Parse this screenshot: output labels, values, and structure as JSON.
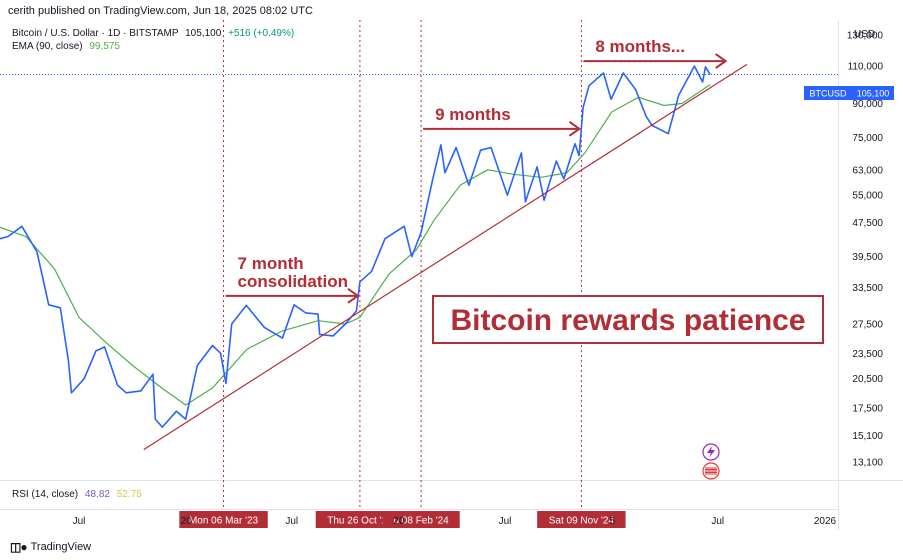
{
  "header": {
    "text": "cerith published on TradingView.com, Jun 18, 2025 08:02 UTC"
  },
  "legend": {
    "symbol": "Bitcoin / U.S. Dollar · 1D · BITSTAMP",
    "price": "105,100",
    "change": "+516 (+0.49%)",
    "ema_label": "EMA (90, close)",
    "ema_value": "99,575"
  },
  "rsi": {
    "label": "RSI (14, close)",
    "value1": "48.82",
    "value2": "52.75"
  },
  "currency": "USD",
  "ticker_tag": {
    "symbol": "BTCUSD",
    "price": "105,100"
  },
  "footer": {
    "brand": "TradingView"
  },
  "colors": {
    "price": "#2962ff",
    "ema": "#4caf50",
    "annotation": "#b22d35",
    "axis_text": "#131722"
  },
  "chart_data": {
    "type": "line",
    "scale": "log",
    "ylim": [
      13100,
      130000
    ],
    "y_ticks": [
      {
        "value": 130000,
        "label": "130,000"
      },
      {
        "value": 110000,
        "label": "110,000"
      },
      {
        "value": 90000,
        "label": "90,000"
      },
      {
        "value": 75000,
        "label": "75,000"
      },
      {
        "value": 63000,
        "label": "63,000"
      },
      {
        "value": 55000,
        "label": "55,000"
      },
      {
        "value": 47500,
        "label": "47,500"
      },
      {
        "value": 39500,
        "label": "39,500"
      },
      {
        "value": 33500,
        "label": "33,500"
      },
      {
        "value": 27500,
        "label": "27,500"
      },
      {
        "value": 23500,
        "label": "23,500"
      },
      {
        "value": 20500,
        "label": "20,500"
      },
      {
        "value": 17500,
        "label": "17,500"
      },
      {
        "value": 15100,
        "label": "15,100"
      },
      {
        "value": 13100,
        "label": "13,100"
      }
    ],
    "x_ticks": [
      {
        "date": "2022-07-01",
        "label": "Jul"
      },
      {
        "date": "2023-01-01",
        "label": "20"
      },
      {
        "date": "2023-07-01",
        "label": "Jul"
      },
      {
        "date": "2024-01-01",
        "label": "20"
      },
      {
        "date": "2024-07-01",
        "label": "Jul"
      },
      {
        "date": "2025-01-01",
        "label": "5"
      },
      {
        "date": "2025-07-01",
        "label": "Jul"
      },
      {
        "date": "2026-01-01",
        "label": "2026"
      }
    ],
    "date_markers": [
      {
        "date": "2023-03-06",
        "label": "Mon 06 Mar '23"
      },
      {
        "date": "2023-10-26",
        "label": "Thu 26 Oct '23"
      },
      {
        "date": "2024-02-08",
        "label": "u 08 Feb '24"
      },
      {
        "date": "2024-11-09",
        "label": "Sat 09 Nov '24"
      }
    ],
    "series": [
      {
        "role": "price",
        "points": [
          [
            "2022-02-01",
            43000
          ],
          [
            "2022-03-01",
            44000
          ],
          [
            "2022-03-25",
            46500
          ],
          [
            "2022-04-20",
            40500
          ],
          [
            "2022-05-10",
            30500
          ],
          [
            "2022-05-30",
            30000
          ],
          [
            "2022-06-13",
            22500
          ],
          [
            "2022-06-18",
            19000
          ],
          [
            "2022-07-10",
            20500
          ],
          [
            "2022-07-30",
            23800
          ],
          [
            "2022-08-14",
            24300
          ],
          [
            "2022-09-05",
            19800
          ],
          [
            "2022-09-20",
            19000
          ],
          [
            "2022-10-15",
            19200
          ],
          [
            "2022-11-05",
            21000
          ],
          [
            "2022-11-09",
            16500
          ],
          [
            "2022-11-21",
            15800
          ],
          [
            "2022-12-15",
            17200
          ],
          [
            "2022-12-31",
            16500
          ],
          [
            "2023-01-20",
            22000
          ],
          [
            "2023-02-15",
            24500
          ],
          [
            "2023-03-01",
            23500
          ],
          [
            "2023-03-10",
            20000
          ],
          [
            "2023-03-20",
            27500
          ],
          [
            "2023-04-14",
            30400
          ],
          [
            "2023-05-15",
            27000
          ],
          [
            "2023-06-15",
            25500
          ],
          [
            "2023-07-05",
            30500
          ],
          [
            "2023-07-25",
            29200
          ],
          [
            "2023-08-15",
            29000
          ],
          [
            "2023-08-18",
            26000
          ],
          [
            "2023-09-10",
            25800
          ],
          [
            "2023-10-01",
            27500
          ],
          [
            "2023-10-20",
            29500
          ],
          [
            "2023-10-26",
            34500
          ],
          [
            "2023-11-15",
            36500
          ],
          [
            "2023-12-08",
            43500
          ],
          [
            "2024-01-10",
            46500
          ],
          [
            "2024-01-23",
            39500
          ],
          [
            "2024-02-08",
            45000
          ],
          [
            "2024-02-28",
            60000
          ],
          [
            "2024-03-13",
            72000
          ],
          [
            "2024-03-20",
            62000
          ],
          [
            "2024-04-08",
            71000
          ],
          [
            "2024-04-30",
            58000
          ],
          [
            "2024-05-20",
            70000
          ],
          [
            "2024-06-07",
            71000
          ],
          [
            "2024-07-05",
            55000
          ],
          [
            "2024-07-29",
            69000
          ],
          [
            "2024-08-05",
            53000
          ],
          [
            "2024-08-25",
            64000
          ],
          [
            "2024-09-06",
            53500
          ],
          [
            "2024-09-27",
            66000
          ],
          [
            "2024-10-10",
            60000
          ],
          [
            "2024-10-29",
            72500
          ],
          [
            "2024-11-05",
            68000
          ],
          [
            "2024-11-12",
            88000
          ],
          [
            "2024-11-22",
            99000
          ],
          [
            "2024-12-17",
            106000
          ],
          [
            "2024-12-30",
            92000
          ],
          [
            "2025-01-20",
            106000
          ],
          [
            "2025-02-10",
            97000
          ],
          [
            "2025-02-28",
            84000
          ],
          [
            "2025-03-10",
            80000
          ],
          [
            "2025-04-07",
            76500
          ],
          [
            "2025-04-25",
            94000
          ],
          [
            "2025-05-22",
            110000
          ],
          [
            "2025-06-05",
            101000
          ],
          [
            "2025-06-10",
            109500
          ],
          [
            "2025-06-18",
            105100
          ]
        ]
      },
      {
        "role": "ema",
        "points": [
          [
            "2022-02-01",
            47000
          ],
          [
            "2022-04-01",
            44000
          ],
          [
            "2022-05-20",
            37000
          ],
          [
            "2022-07-01",
            28500
          ],
          [
            "2022-08-15",
            25000
          ],
          [
            "2022-10-01",
            22000
          ],
          [
            "2022-11-20",
            19500
          ],
          [
            "2022-12-31",
            17800
          ],
          [
            "2023-02-15",
            19500
          ],
          [
            "2023-04-15",
            24000
          ],
          [
            "2023-06-15",
            26500
          ],
          [
            "2023-08-15",
            28000
          ],
          [
            "2023-10-01",
            27500
          ],
          [
            "2023-10-26",
            28500
          ],
          [
            "2023-12-15",
            36000
          ],
          [
            "2024-01-31",
            41000
          ],
          [
            "2024-03-01",
            48000
          ],
          [
            "2024-04-15",
            58000
          ],
          [
            "2024-06-01",
            63000
          ],
          [
            "2024-07-15",
            61500
          ],
          [
            "2024-09-01",
            60500
          ],
          [
            "2024-10-15",
            62000
          ],
          [
            "2024-11-15",
            69000
          ],
          [
            "2024-12-31",
            86000
          ],
          [
            "2025-02-15",
            93000
          ],
          [
            "2025-03-31",
            89000
          ],
          [
            "2025-05-01",
            90000
          ],
          [
            "2025-06-18",
            99575
          ]
        ]
      }
    ],
    "trendline": [
      [
        "2022-10-20",
        14000
      ],
      [
        "2025-08-20",
        111000
      ]
    ],
    "annotations": [
      {
        "lines": [
          "7 month",
          "consolidation"
        ],
        "from": "2023-03-06",
        "to": "2023-10-26",
        "y": 32000
      },
      {
        "lines": [
          "9 months"
        ],
        "from": "2024-02-08",
        "to": "2024-11-09",
        "y": 78500
      },
      {
        "lines": [
          "8 months..."
        ],
        "from": "2024-11-09",
        "to": "2025-07-18",
        "y": 113000
      }
    ],
    "callout": "Bitcoin rewards patience"
  }
}
